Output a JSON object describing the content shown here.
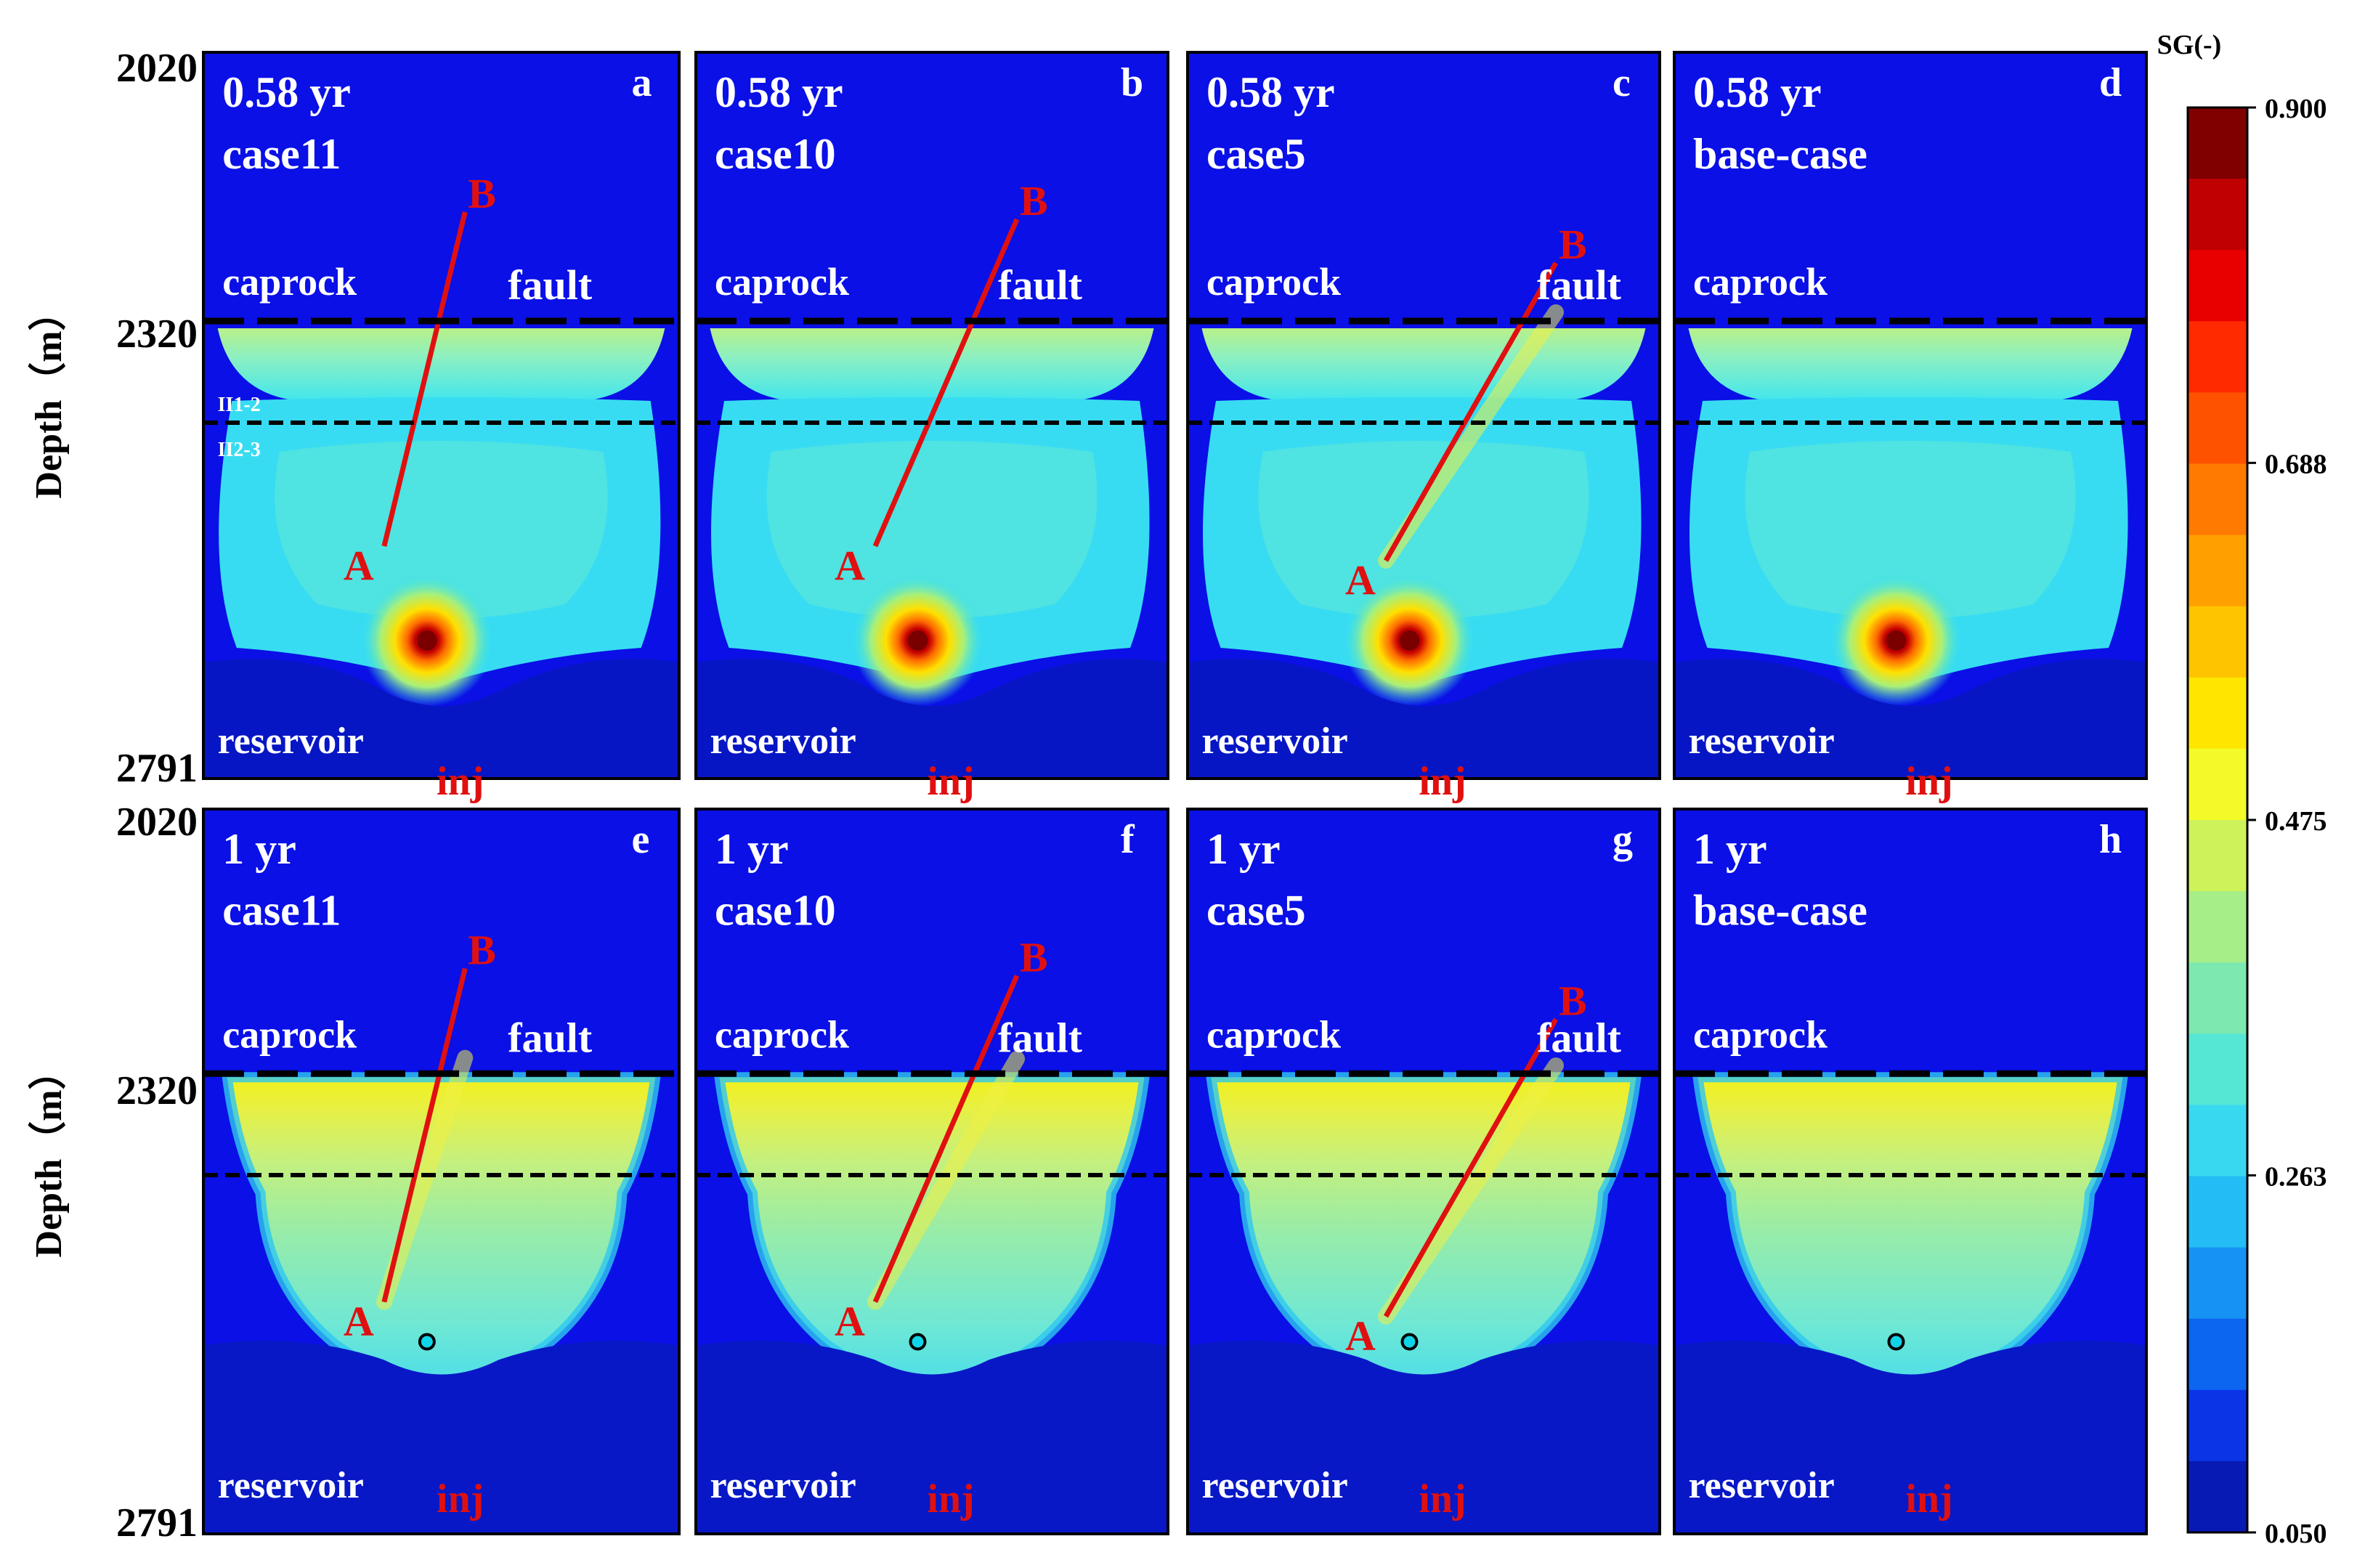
{
  "figure": {
    "y_axis_label": "Depth（m）",
    "depth_ticks": [
      "2020",
      "2320",
      "2791"
    ],
    "layer_labels": {
      "caprock": "caprock",
      "reservoir": "reservoir",
      "fault": "fault",
      "inj": "inj"
    },
    "fault_endpoints": {
      "top": "B",
      "bottom": "A"
    },
    "sublayer_labels": [
      "II1-2",
      "II2-3"
    ]
  },
  "panels": [
    {
      "letter": "a",
      "time": "0.58 yr",
      "case": "case11",
      "fault": "case11",
      "stage": "early",
      "show_sublayers": true
    },
    {
      "letter": "b",
      "time": "0.58 yr",
      "case": "case10",
      "fault": "case10",
      "stage": "early",
      "show_sublayers": false
    },
    {
      "letter": "c",
      "time": "0.58 yr",
      "case": "case5",
      "fault": "case5",
      "stage": "early",
      "show_sublayers": false
    },
    {
      "letter": "d",
      "time": "0.58 yr",
      "case": "base-case",
      "fault": "none",
      "stage": "early",
      "show_sublayers": false
    },
    {
      "letter": "e",
      "time": "1 yr",
      "case": "case11",
      "fault": "case11",
      "stage": "late",
      "show_sublayers": false
    },
    {
      "letter": "f",
      "time": "1 yr",
      "case": "case10",
      "fault": "case10",
      "stage": "late",
      "show_sublayers": false
    },
    {
      "letter": "g",
      "time": "1 yr",
      "case": "case5",
      "fault": "case5",
      "stage": "late",
      "show_sublayers": false
    },
    {
      "letter": "h",
      "time": "1 yr",
      "case": "base-case",
      "fault": "none",
      "stage": "late",
      "show_sublayers": false
    }
  ],
  "chart_data": {
    "type": "heatmap",
    "title": "",
    "colorbar": {
      "label": "SG(-)",
      "min": 0.05,
      "max": 0.9,
      "levels": 20,
      "ticks": [
        "0.900",
        "0.688",
        "0.475",
        "0.263",
        "0.050"
      ]
    },
    "ylabel": "Depth（m）",
    "ylim": [
      2791,
      2020
    ],
    "y_ticks": [
      2020,
      2320,
      2791
    ]
  },
  "colors": {
    "background_field": "#0a10e6",
    "label_red": "#e01010",
    "label_white": "#ffffff",
    "interface_line": "#000000",
    "fault_line": "#e01010"
  }
}
